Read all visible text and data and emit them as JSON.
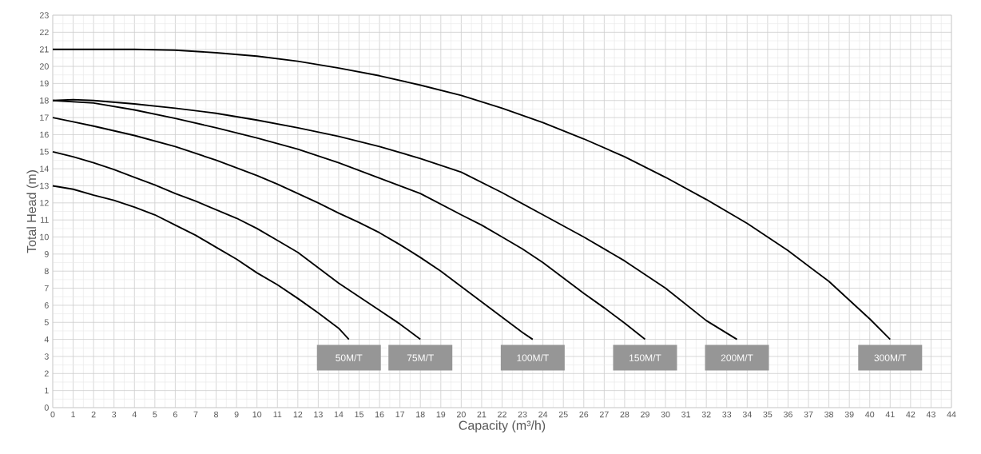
{
  "chart_data": {
    "type": "line",
    "xlabel": "Capacity (m³/h)",
    "ylabel": "Total Head (m)",
    "xlim": [
      0,
      44
    ],
    "xticks": [
      0,
      1,
      2,
      3,
      4,
      5,
      6,
      7,
      8,
      9,
      10,
      11,
      12,
      13,
      14,
      15,
      16,
      17,
      18,
      19,
      20,
      21,
      22,
      23,
      24,
      25,
      26,
      27,
      28,
      29,
      30,
      31,
      32,
      33,
      34,
      35,
      36,
      37,
      38,
      39,
      40,
      41,
      42,
      43,
      44
    ],
    "ylim": [
      0,
      23
    ],
    "yticks": [
      0,
      1,
      2,
      3,
      4,
      5,
      6,
      7,
      8,
      9,
      10,
      11,
      12,
      13,
      14,
      15,
      16,
      17,
      18,
      19,
      20,
      21,
      22,
      23
    ],
    "grid": true,
    "legend": false,
    "marker": "none",
    "line_style": "solid",
    "series": [
      {
        "name": "50M/T",
        "color": "#000000",
        "x": [
          0,
          1,
          2,
          3,
          4,
          5,
          6,
          7,
          8,
          9,
          10,
          11,
          12,
          13,
          14,
          14.5
        ],
        "values": [
          13,
          12.8,
          12.45,
          12.15,
          11.75,
          11.3,
          10.7,
          10.1,
          9.4,
          8.7,
          7.9,
          7.2,
          6.4,
          5.55,
          4.65,
          4
        ]
      },
      {
        "name": "75M/T",
        "color": "#000000",
        "x": [
          0,
          1,
          2,
          3,
          4,
          5,
          6,
          7,
          8,
          9,
          10,
          11,
          12,
          13,
          14,
          15,
          16,
          17,
          18
        ],
        "values": [
          15,
          14.7,
          14.35,
          13.95,
          13.5,
          13.05,
          12.55,
          12.1,
          11.6,
          11.1,
          10.5,
          9.8,
          9.1,
          8.2,
          7.3,
          6.5,
          5.7,
          4.9,
          4
        ]
      },
      {
        "name": "100M/T",
        "color": "#000000",
        "x": [
          0,
          1,
          2,
          4,
          6,
          8,
          10,
          11,
          12,
          13,
          14,
          15,
          16,
          17,
          18,
          19,
          20,
          21,
          22,
          23,
          23.5
        ],
        "values": [
          17,
          16.75,
          16.5,
          15.95,
          15.3,
          14.5,
          13.6,
          13.1,
          12.55,
          12,
          11.4,
          10.85,
          10.25,
          9.55,
          8.8,
          8,
          7.1,
          6.2,
          5.3,
          4.4,
          4
        ]
      },
      {
        "name": "150M/T",
        "color": "#000000",
        "x": [
          0,
          2,
          4,
          6,
          8,
          10,
          12,
          14,
          16,
          18,
          20,
          21,
          22,
          23,
          24,
          25,
          26,
          27,
          28,
          29
        ],
        "values": [
          18,
          17.85,
          17.45,
          16.95,
          16.4,
          15.8,
          15.15,
          14.35,
          13.45,
          12.55,
          11.3,
          10.7,
          10,
          9.3,
          8.5,
          7.6,
          6.7,
          5.85,
          4.95,
          4
        ]
      },
      {
        "name": "200M/T",
        "color": "#000000",
        "x": [
          0,
          1,
          2,
          4,
          6,
          8,
          10,
          12,
          14,
          16,
          18,
          20,
          22,
          24,
          26,
          28,
          30,
          32,
          33.5
        ],
        "values": [
          18,
          18.05,
          18,
          17.8,
          17.55,
          17.25,
          16.85,
          16.4,
          15.9,
          15.3,
          14.6,
          13.8,
          12.6,
          11.3,
          10,
          8.6,
          7,
          5.1,
          4
        ]
      },
      {
        "name": "300M/T",
        "color": "#000000",
        "x": [
          0,
          2,
          4,
          6,
          8,
          10,
          12,
          14,
          16,
          18,
          20,
          22,
          24,
          26,
          28,
          30,
          32,
          34,
          36,
          38,
          40,
          41
        ],
        "values": [
          21,
          21,
          21,
          20.95,
          20.8,
          20.6,
          20.3,
          19.9,
          19.45,
          18.9,
          18.3,
          17.55,
          16.7,
          15.75,
          14.7,
          13.5,
          12.2,
          10.8,
          9.2,
          7.4,
          5.2,
          4
        ]
      }
    ]
  }
}
